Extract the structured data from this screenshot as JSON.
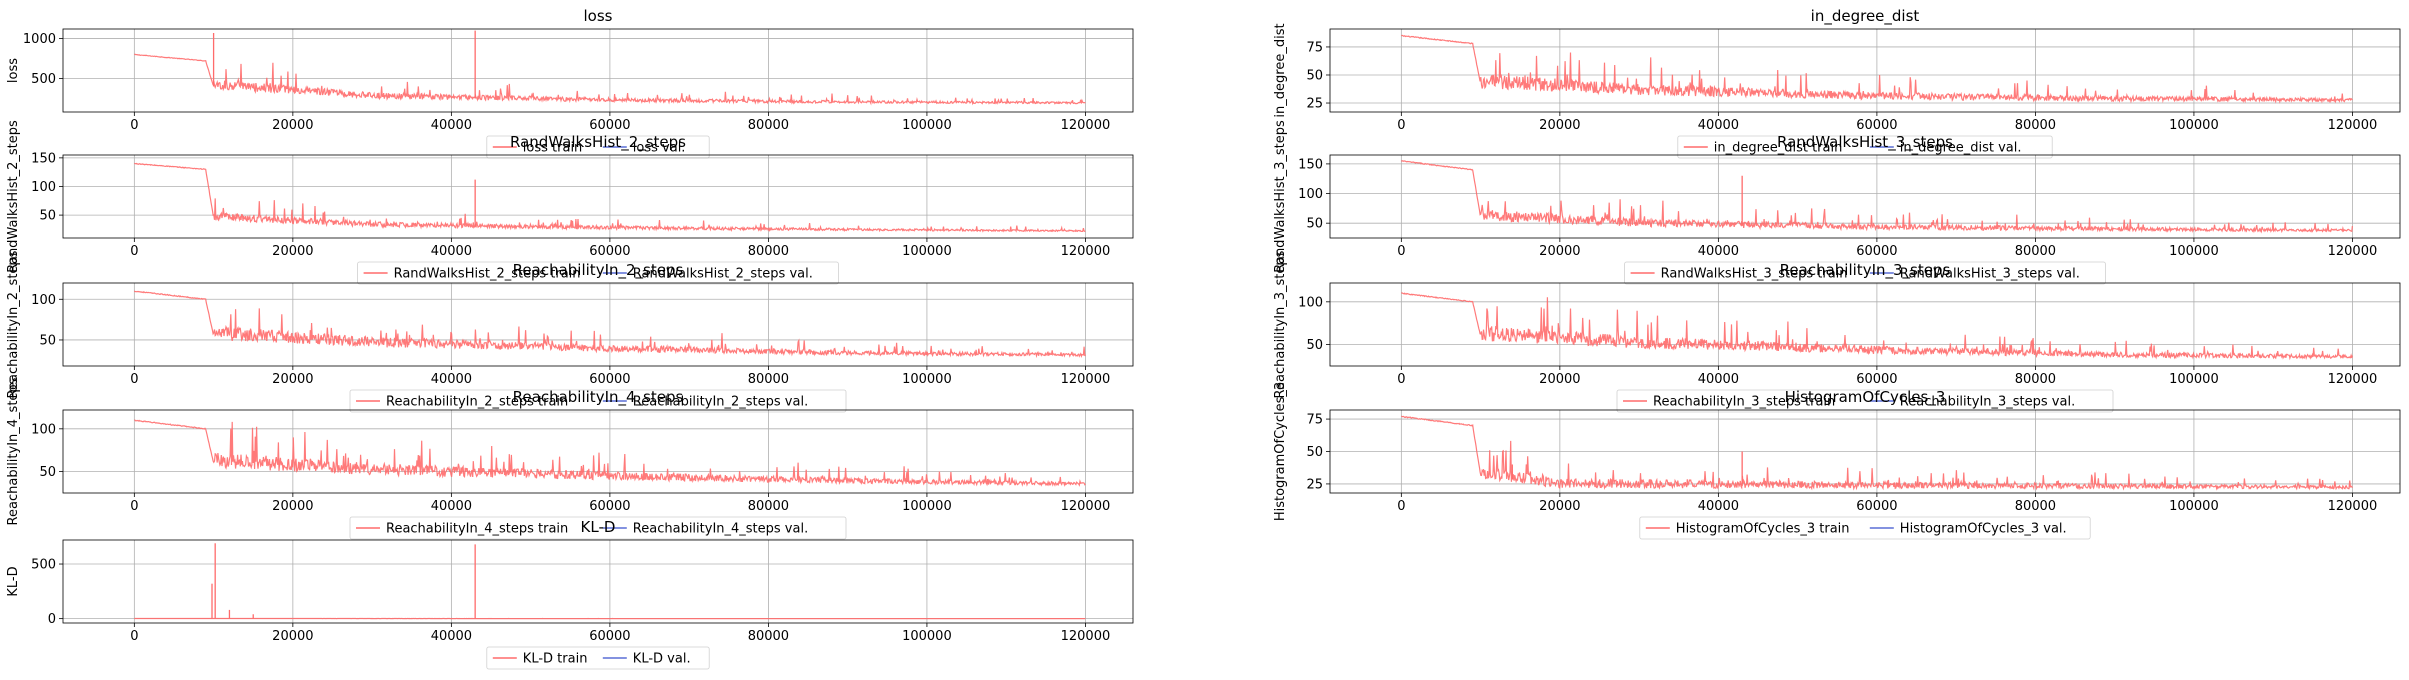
{
  "charts": [
    {
      "type": "line",
      "title": "loss",
      "ylabel": "loss",
      "xlim": [
        -9000,
        126000
      ],
      "ylim": [
        80,
        1120
      ],
      "xticks": [
        0,
        20000,
        40000,
        60000,
        80000,
        100000,
        120000
      ],
      "yticks": [
        500,
        1000
      ],
      "legend": "bottom-center",
      "series": [
        {
          "name": "loss train",
          "color": "#ff6b6b",
          "values": [
            {
              "x": 0,
              "y": 800
            },
            {
              "x": 9000,
              "y": 720
            },
            {
              "x": 10000,
              "y": 400
            },
            {
              "x": 30000,
              "y": 270
            },
            {
              "x": 60000,
              "y": 220
            },
            {
              "x": 90000,
              "y": 200
            },
            {
              "x": 120000,
              "y": 190
            }
          ],
          "spikes": [
            {
              "x": 10000,
              "y": 1070
            },
            {
              "x": 43000,
              "y": 1100
            }
          ]
        },
        {
          "name": "loss val.",
          "color": "#5a6fd6",
          "values": []
        }
      ]
    },
    {
      "type": "line",
      "title": "in_degree_dist",
      "ylabel": "in_degree_dist",
      "xlim": [
        -9000,
        126000
      ],
      "ylim": [
        17,
        91
      ],
      "xticks": [
        0,
        20000,
        40000,
        60000,
        80000,
        100000,
        120000
      ],
      "yticks": [
        25,
        50,
        75
      ],
      "legend": "bottom-center",
      "series": [
        {
          "name": "in_degree_dist train",
          "color": "#ff6b6b",
          "values": [
            {
              "x": 0,
              "y": 85
            },
            {
              "x": 9000,
              "y": 78
            },
            {
              "x": 10000,
              "y": 42
            },
            {
              "x": 30000,
              "y": 35
            },
            {
              "x": 60000,
              "y": 30
            },
            {
              "x": 90000,
              "y": 28
            },
            {
              "x": 120000,
              "y": 27
            }
          ],
          "spikes": []
        },
        {
          "name": "in_degree_dist val.",
          "color": "#5a6fd6",
          "values": []
        }
      ]
    },
    {
      "type": "line",
      "title": "RandWalksHist_2_steps",
      "ylabel": "RandWalksHist_2_steps",
      "xlim": [
        -9000,
        126000
      ],
      "ylim": [
        10,
        155
      ],
      "xticks": [
        0,
        20000,
        40000,
        60000,
        80000,
        100000,
        120000
      ],
      "yticks": [
        50,
        100,
        150
      ],
      "legend": "bottom-center",
      "series": [
        {
          "name": "RandWalksHist_2_steps train",
          "color": "#ff6b6b",
          "values": [
            {
              "x": 0,
              "y": 140
            },
            {
              "x": 9000,
              "y": 130
            },
            {
              "x": 10000,
              "y": 45
            },
            {
              "x": 30000,
              "y": 32
            },
            {
              "x": 60000,
              "y": 27
            },
            {
              "x": 90000,
              "y": 24
            },
            {
              "x": 120000,
              "y": 22
            }
          ],
          "spikes": [
            {
              "x": 43000,
              "y": 112
            }
          ]
        },
        {
          "name": "RandWalksHist_2_steps val.",
          "color": "#5a6fd6",
          "values": []
        }
      ]
    },
    {
      "type": "line",
      "title": "RandWalksHist_3_steps",
      "ylabel": "RandWalksHist_3_steps",
      "xlim": [
        -9000,
        126000
      ],
      "ylim": [
        25,
        165
      ],
      "xticks": [
        0,
        20000,
        40000,
        60000,
        80000,
        100000,
        120000
      ],
      "yticks": [
        50,
        100,
        150
      ],
      "legend": "bottom-center",
      "series": [
        {
          "name": "RandWalksHist_3_steps train",
          "color": "#ff6b6b",
          "values": [
            {
              "x": 0,
              "y": 155
            },
            {
              "x": 9000,
              "y": 140
            },
            {
              "x": 10000,
              "y": 60
            },
            {
              "x": 30000,
              "y": 48
            },
            {
              "x": 60000,
              "y": 42
            },
            {
              "x": 90000,
              "y": 39
            },
            {
              "x": 120000,
              "y": 37
            }
          ],
          "spikes": [
            {
              "x": 43000,
              "y": 130
            }
          ]
        },
        {
          "name": "RandWalksHist_3_steps val.",
          "color": "#5a6fd6",
          "values": []
        }
      ]
    },
    {
      "type": "line",
      "title": "ReachabilityIn_2_steps",
      "ylabel": "ReachabilityIn_2_steps",
      "xlim": [
        -9000,
        126000
      ],
      "ylim": [
        18,
        120
      ],
      "xticks": [
        0,
        20000,
        40000,
        60000,
        80000,
        100000,
        120000
      ],
      "yticks": [
        50,
        100
      ],
      "legend": "bottom-center",
      "series": [
        {
          "name": "ReachabilityIn_2_steps train",
          "color": "#ff6b6b",
          "values": [
            {
              "x": 0,
              "y": 110
            },
            {
              "x": 9000,
              "y": 100
            },
            {
              "x": 10000,
              "y": 55
            },
            {
              "x": 30000,
              "y": 45
            },
            {
              "x": 60000,
              "y": 38
            },
            {
              "x": 90000,
              "y": 33
            },
            {
              "x": 120000,
              "y": 31
            }
          ],
          "spikes": []
        },
        {
          "name": "ReachabilityIn_2_steps val.",
          "color": "#5a6fd6",
          "values": []
        }
      ]
    },
    {
      "type": "line",
      "title": "ReachabilityIn_3_steps",
      "ylabel": "ReachabilityIn_3_steps",
      "xlim": [
        -9000,
        126000
      ],
      "ylim": [
        25,
        122
      ],
      "xticks": [
        0,
        20000,
        40000,
        60000,
        80000,
        100000,
        120000
      ],
      "yticks": [
        50,
        100
      ],
      "legend": "bottom-center",
      "series": [
        {
          "name": "ReachabilityIn_3_steps train",
          "color": "#ff6b6b",
          "values": [
            {
              "x": 0,
              "y": 110
            },
            {
              "x": 9000,
              "y": 100
            },
            {
              "x": 10000,
              "y": 60
            },
            {
              "x": 30000,
              "y": 50
            },
            {
              "x": 60000,
              "y": 42
            },
            {
              "x": 90000,
              "y": 37
            },
            {
              "x": 120000,
              "y": 35
            }
          ],
          "spikes": []
        },
        {
          "name": "ReachabilityIn_3_steps val.",
          "color": "#5a6fd6",
          "values": []
        }
      ]
    },
    {
      "type": "line",
      "title": "ReachabilityIn_4_steps",
      "ylabel": "ReachabilityIn_4_steps",
      "xlim": [
        -9000,
        126000
      ],
      "ylim": [
        25,
        122
      ],
      "xticks": [
        0,
        20000,
        40000,
        60000,
        80000,
        100000,
        120000
      ],
      "yticks": [
        50,
        100
      ],
      "legend": "bottom-center",
      "series": [
        {
          "name": "ReachabilityIn_4_steps train",
          "color": "#ff6b6b",
          "values": [
            {
              "x": 0,
              "y": 110
            },
            {
              "x": 9000,
              "y": 100
            },
            {
              "x": 10000,
              "y": 60
            },
            {
              "x": 30000,
              "y": 50
            },
            {
              "x": 60000,
              "y": 43
            },
            {
              "x": 90000,
              "y": 38
            },
            {
              "x": 120000,
              "y": 35
            }
          ],
          "spikes": []
        },
        {
          "name": "ReachabilityIn_4_steps val.",
          "color": "#5a6fd6",
          "values": []
        }
      ]
    },
    {
      "type": "line",
      "title": "HistogramOfCycles_3",
      "ylabel": "HistogramOfCycles_3",
      "xlim": [
        -9000,
        126000
      ],
      "ylim": [
        18,
        82
      ],
      "xticks": [
        0,
        20000,
        40000,
        60000,
        80000,
        100000,
        120000
      ],
      "yticks": [
        25,
        50,
        75
      ],
      "legend": "bottom-center",
      "series": [
        {
          "name": "HistogramOfCycles_3 train",
          "color": "#ff6b6b",
          "values": [
            {
              "x": 0,
              "y": 77
            },
            {
              "x": 9000,
              "y": 70
            },
            {
              "x": 10000,
              "y": 32
            },
            {
              "x": 20000,
              "y": 24
            },
            {
              "x": 60000,
              "y": 23
            },
            {
              "x": 120000,
              "y": 22
            }
          ],
          "spikes": [
            {
              "x": 43000,
              "y": 50
            },
            {
              "x": 14000,
              "y": 40
            }
          ]
        },
        {
          "name": "HistogramOfCycles_3 val.",
          "color": "#5a6fd6",
          "values": []
        }
      ]
    },
    {
      "type": "line",
      "title": "KL-D",
      "ylabel": "KL-D",
      "xlim": [
        -9000,
        126000
      ],
      "ylim": [
        -40,
        720
      ],
      "xticks": [
        0,
        20000,
        40000,
        60000,
        80000,
        100000,
        120000
      ],
      "yticks": [
        0,
        500
      ],
      "legend": "bottom-center",
      "series": [
        {
          "name": "KL-D train",
          "color": "#ff6b6b",
          "values": [
            {
              "x": 0,
              "y": 1
            },
            {
              "x": 120000,
              "y": 0
            }
          ],
          "spikes": [
            {
              "x": 9800,
              "y": 320
            },
            {
              "x": 10200,
              "y": 690
            },
            {
              "x": 43000,
              "y": 680
            },
            {
              "x": 12000,
              "y": 80
            },
            {
              "x": 15000,
              "y": 40
            }
          ]
        },
        {
          "name": "KL-D val.",
          "color": "#5a6fd6",
          "values": []
        }
      ]
    }
  ]
}
